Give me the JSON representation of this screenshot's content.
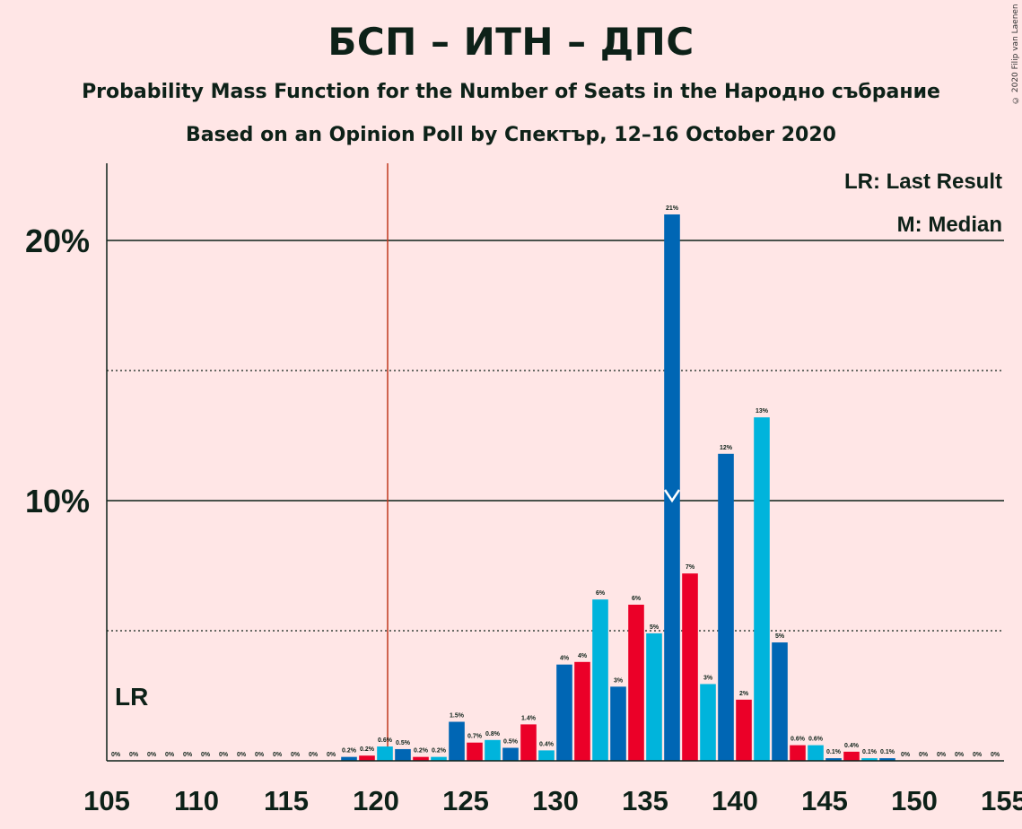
{
  "title": "БСП – ИТН – ДПС",
  "subtitle1": "Probability Mass Function for the Number of Seats in the Народно събрание",
  "subtitle2": "Based on an Opinion Poll by Спектър, 12–16 October 2020",
  "copyright": "© 2020 Filip van Laenen",
  "legend": {
    "lr": "LR: Last Result",
    "median": "M: Median"
  },
  "lr_marker_label": "LR",
  "median_marker_label": "M",
  "colors": {
    "background": "#FFE6E6",
    "blue_dark": "#0066B4",
    "blue_light": "#00B4DC",
    "red": "#EB0028",
    "text": "#0d2118",
    "lr_line": "#C0391F"
  },
  "chart_data": {
    "type": "bar",
    "x_ticks": [
      "105",
      "110",
      "115",
      "120",
      "125",
      "130",
      "135",
      "140",
      "145",
      "150",
      "155"
    ],
    "y_ticks": [
      "10%",
      "20%"
    ],
    "xlim": [
      105,
      155
    ],
    "ylim": [
      0,
      23
    ],
    "last_result": 121,
    "median": 137,
    "grid": "solid lines at 10% and 20%, dotted at 5% and 15%",
    "categories": [
      106,
      107,
      108,
      109,
      110,
      111,
      112,
      113,
      114,
      115,
      116,
      117,
      118,
      119,
      120,
      121,
      122,
      123,
      124,
      125,
      126,
      127,
      128,
      129,
      130,
      131,
      132,
      133,
      134,
      135,
      136,
      137,
      138,
      139,
      140,
      141,
      142,
      143,
      144,
      145,
      146,
      147,
      148,
      149,
      150,
      151,
      152,
      153,
      154,
      155
    ],
    "values": [
      0,
      0,
      0,
      0,
      0,
      0,
      0,
      0,
      0,
      0,
      0,
      0,
      0,
      0.15,
      0.2,
      0.55,
      0.45,
      0.15,
      0.15,
      1.5,
      0.7,
      0.8,
      0.5,
      1.4,
      0.4,
      3.7,
      3.8,
      6.2,
      2.85,
      6.0,
      4.9,
      21.0,
      7.2,
      2.95,
      11.8,
      2.35,
      13.2,
      4.55,
      0.6,
      0.6,
      0.1,
      0.35,
      0.1,
      0.1,
      0,
      0,
      0,
      0,
      0,
      0
    ],
    "labels": [
      "0%",
      "0%",
      "0%",
      "0%",
      "0%",
      "0%",
      "0%",
      "0%",
      "0%",
      "0%",
      "0%",
      "0%",
      "0%",
      "0.2%",
      "0.2%",
      "0.6%",
      "0.5%",
      "0.2%",
      "0.2%",
      "1.5%",
      "0.7%",
      "0.8%",
      "0.5%",
      "1.4%",
      "0.4%",
      "4%",
      "4%",
      "6%",
      "3%",
      "6%",
      "5%",
      "21%",
      "7%",
      "3%",
      "12%",
      "2%",
      "13%",
      "5%",
      "0.6%",
      "0.6%",
      "0.1%",
      "0.4%",
      "0.1%",
      "0.1%",
      "0%",
      "0%",
      "0%",
      "0%",
      "0%",
      "0%"
    ],
    "bar_colors": [
      "blue_light",
      "blue_dark",
      "red",
      "blue_light",
      "blue_dark",
      "red",
      "blue_light",
      "blue_dark",
      "red",
      "blue_light",
      "blue_dark",
      "red",
      "blue_light",
      "blue_dark",
      "red",
      "blue_light",
      "blue_dark",
      "red",
      "blue_light",
      "blue_dark",
      "red",
      "blue_light",
      "blue_dark",
      "red",
      "blue_light",
      "blue_dark",
      "red",
      "blue_light",
      "blue_dark",
      "red",
      "blue_light",
      "blue_dark",
      "red",
      "blue_light",
      "blue_dark",
      "red",
      "blue_light",
      "blue_dark",
      "red",
      "blue_light",
      "blue_dark",
      "red",
      "blue_light",
      "blue_dark",
      "red",
      "blue_light",
      "blue_dark",
      "red",
      "blue_light",
      "blue_dark"
    ]
  }
}
